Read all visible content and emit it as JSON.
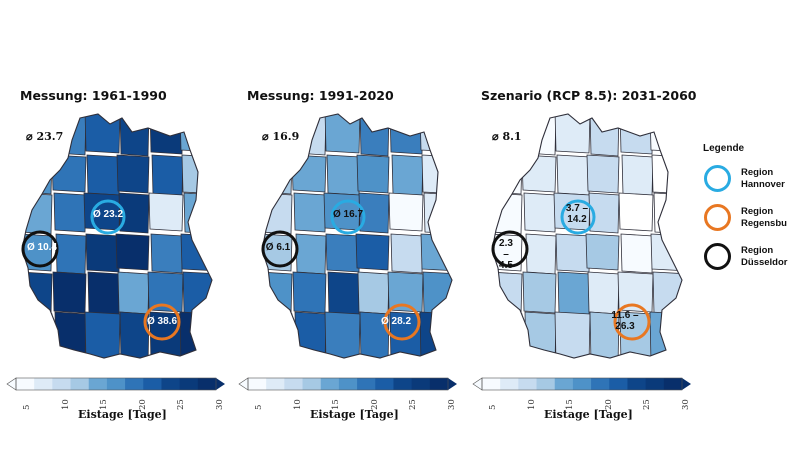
{
  "panels": [
    {
      "title": "Messung: 1961-1990",
      "mean": "⌀ 23.7",
      "fills": [
        "#3a7ebd",
        "#3a7ebd",
        "#1b5da6",
        "#0e4589",
        "#0a3a7a",
        "#6aa6d3",
        "#4e92c8",
        "#2f74b7",
        "#1b5da6",
        "#0e4589",
        "#1b5da6",
        "#a6c9e4",
        "#6aa6d3",
        "#2f74b7",
        "#0e4589",
        "#0a3a7a",
        "#deebf7",
        "#6aa6d3",
        "#4e92c8",
        "#2f74b7",
        "#0a3a7a",
        "#082f6b",
        "#3a7ebd",
        "#1b5da6",
        "#0e4589",
        "#082f6b",
        "#082f6b",
        "#6aa6d3",
        "#2f74b7",
        "#1b5da6",
        "#0a3a7a",
        "#082f6b",
        "#1b5da6",
        "#0e4589",
        "#0a3a7a",
        "#082f6b"
      ],
      "circles": {
        "hannover": "Ø 23.2",
        "duesseldorf": "Ø 10.4",
        "regensburg": "Ø 38.6"
      }
    },
    {
      "title": "Messung: 1991-2020",
      "mean": "⌀ 16.9",
      "fills": [
        "#a6c9e4",
        "#c6dbef",
        "#6aa6d3",
        "#3a7ebd",
        "#3a7ebd",
        "#c6dbef",
        "#a6c9e4",
        "#6aa6d3",
        "#6aa6d3",
        "#4e92c8",
        "#6aa6d3",
        "#deebf7",
        "#c6dbef",
        "#6aa6d3",
        "#4e92c8",
        "#3a7ebd",
        "#f7fbff",
        "#deebf7",
        "#a6c9e4",
        "#6aa6d3",
        "#3a7ebd",
        "#1b5da6",
        "#c6dbef",
        "#6aa6d3",
        "#4e92c8",
        "#2f74b7",
        "#0e4589",
        "#a6c9e4",
        "#6aa6d3",
        "#4e92c8",
        "#2f74b7",
        "#1b5da6",
        "#3a7ebd",
        "#2f74b7",
        "#1b5da6",
        "#0e4589"
      ],
      "circles": {
        "hannover": "Ø 16.7",
        "duesseldorf": "Ø 6.1",
        "regensburg": "Ø 28.2"
      }
    },
    {
      "title": "Szenario (RCP 8.5): 2031-2060",
      "mean": "⌀ 8.1",
      "fills": [
        "#deebf7",
        "#f7fbff",
        "#deebf7",
        "#c6dbef",
        "#c6dbef",
        "#f7fbff",
        "#f7fbff",
        "#deebf7",
        "#deebf7",
        "#c6dbef",
        "#deebf7",
        "#ffffff",
        "#f7fbff",
        "#deebf7",
        "#c6dbef",
        "#c6dbef",
        "#ffffff",
        "#ffffff",
        "#f7fbff",
        "#deebf7",
        "#c6dbef",
        "#a6c9e4",
        "#f7fbff",
        "#deebf7",
        "#c6dbef",
        "#a6c9e4",
        "#6aa6d3",
        "#deebf7",
        "#deebf7",
        "#c6dbef",
        "#a6c9e4",
        "#a6c9e4",
        "#c6dbef",
        "#a6c9e4",
        "#a6c9e4",
        "#6aa6d3"
      ],
      "circles": {
        "hannover": "3.7 – 14.2",
        "duesseldorf": "2.3 – 4.5",
        "regensburg": "11.6 – 26.3"
      }
    }
  ],
  "colorbar": {
    "title": "Eistage [Tage]",
    "ticks": [
      "5",
      "10",
      "15",
      "20",
      "25",
      "30"
    ],
    "colors": [
      "#f7fbff",
      "#deebf7",
      "#c6dbef",
      "#a6c9e4",
      "#6aa6d3",
      "#4e92c8",
      "#2f74b7",
      "#1b5da6",
      "#0e4589",
      "#0a3a7a",
      "#082f6b"
    ]
  },
  "legend": {
    "title": "Legende",
    "items": [
      {
        "label": "Region Hannover",
        "line1": "Region",
        "line2": "Hannover",
        "color": "#29abe2"
      },
      {
        "label": "Region Regensburg",
        "line1": "Region",
        "line2": "Regensbu",
        "color": "#e87722"
      },
      {
        "label": "Region Düsseldorf",
        "line1": "Region",
        "line2": "Düsseldor",
        "color": "#111111"
      }
    ]
  }
}
